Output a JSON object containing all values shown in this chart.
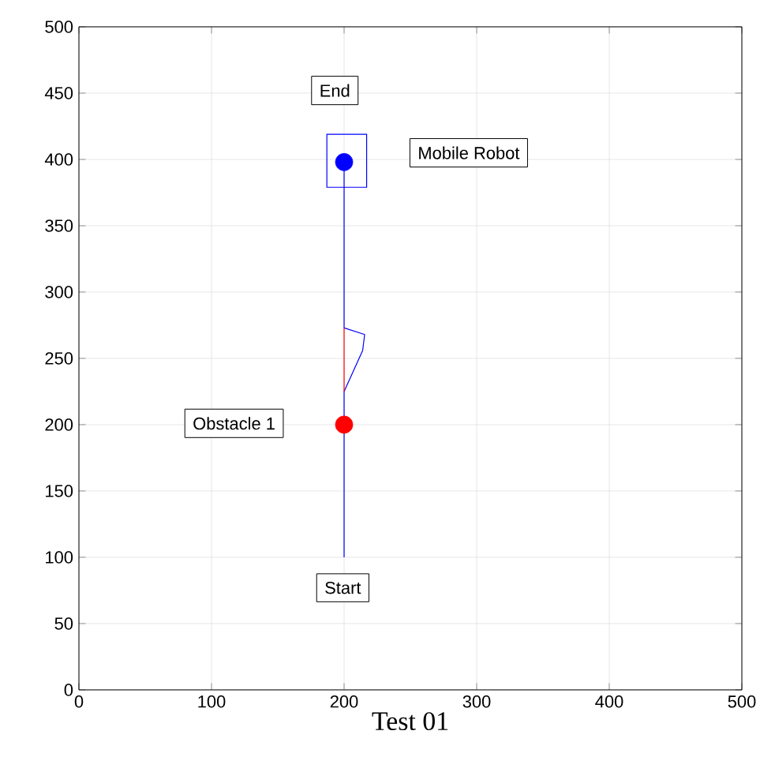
{
  "chart_data": {
    "type": "line",
    "xlabel": "Test 01",
    "xlim": [
      0,
      500
    ],
    "ylim": [
      0,
      500
    ],
    "xticks": [
      0,
      100,
      200,
      300,
      400,
      500
    ],
    "yticks": [
      0,
      50,
      100,
      150,
      200,
      250,
      300,
      350,
      400,
      450,
      500
    ],
    "grid": true,
    "series": [
      {
        "color": "#0000ff",
        "x": [
          200,
          200,
          214,
          215.5,
          200,
          200
        ],
        "values": [
          100,
          225,
          256,
          268,
          273,
          400
        ]
      },
      {
        "color": "#ff0000",
        "x": [
          200,
          200
        ],
        "values": [
          225,
          273
        ]
      },
      {
        "type": "scatter",
        "marker": "square",
        "color": "#0000ff",
        "x": [
          202
        ],
        "values": [
          399
        ]
      },
      {
        "type": "scatter",
        "marker": "circle",
        "color": "#ff0000",
        "x": [
          200
        ],
        "values": [
          200
        ]
      },
      {
        "type": "scatter",
        "marker": "circle",
        "color": "#0000ff",
        "x": [
          200
        ],
        "values": [
          398
        ]
      }
    ],
    "annotations": [
      {
        "text": "End",
        "x": 193,
        "y": 452
      },
      "Mobile Robot",
      "Obstacle 1",
      {
        "text": "Start",
        "x": 199,
        "y": 77
      }
    ]
  }
}
